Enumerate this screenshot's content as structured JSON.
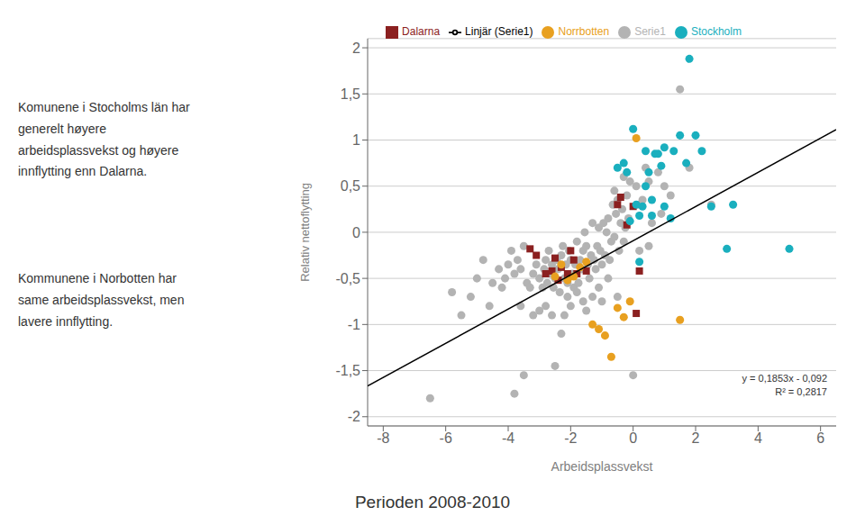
{
  "chart_data": {
    "type": "scatter",
    "title": "Perioden 2008-2010",
    "x_label": "Arbeidsplassvekst",
    "y_label": "Relativ nettoflytting",
    "annotations": [
      "Komunene i Stocholms län har\ngenerelt høyere\narbeidsplassvekst og høyere\ninnflytting enn Dalarna.",
      "Kommunene i Norbotten har\nsame arbeidsplassvekst, men\nlavere innflytting.",
      "y = 0,1853x - 0,092\nR² = 0,2817"
    ],
    "xlim": [
      -8.5,
      6.5
    ],
    "ylim": [
      -2.1,
      2.1
    ],
    "xticks": [
      -8,
      -6,
      -4,
      -2,
      0,
      2,
      4,
      6
    ],
    "yticks": [
      -2,
      {
        "value": -1.5,
        "label": "-1,5"
      },
      -1,
      {
        "value": -0.5,
        "label": "-0,5"
      },
      0,
      {
        "value": 0.5,
        "label": "0,5"
      },
      1,
      {
        "value": 1.5,
        "label": "1,5"
      },
      2
    ],
    "grid": true,
    "legend": "top",
    "series": [
      {
        "name": "Serie1",
        "color": "#b3b3b3",
        "marker": "circle",
        "x": [
          -6.5,
          -5.8,
          -5.5,
          -5.2,
          -4.8,
          -4.5,
          -4.3,
          -4.1,
          -4.0,
          -3.9,
          -3.8,
          -3.7,
          -3.6,
          -3.5,
          -3.4,
          -3.3,
          -3.2,
          -3.1,
          -3.0,
          -2.9,
          -2.85,
          -2.8,
          -2.75,
          -2.7,
          -2.65,
          -2.6,
          -2.55,
          -2.5,
          -2.45,
          -2.4,
          -2.35,
          -2.3,
          -2.25,
          -2.2,
          -2.15,
          -2.1,
          -2.05,
          -2.0,
          -1.95,
          -1.9,
          -1.85,
          -1.8,
          -1.75,
          -1.7,
          -1.65,
          -1.6,
          -1.55,
          -1.5,
          -1.45,
          -1.4,
          -1.35,
          -1.3,
          -1.25,
          -1.2,
          -1.15,
          -1.1,
          -1.05,
          -1.0,
          -0.95,
          -0.9,
          -0.85,
          -0.8,
          -0.75,
          -0.7,
          -0.65,
          -0.6,
          -0.55,
          -0.5,
          -0.45,
          -0.4,
          -0.35,
          -0.3,
          -0.25,
          -0.2,
          -0.15,
          -0.1,
          0.0,
          0.1,
          0.2,
          0.3,
          0.5,
          0.8,
          1.0,
          1.5,
          2.5,
          -3.5,
          -3.8,
          -2.5,
          -2.0,
          -1.5,
          -0.5,
          -1.0,
          0.5,
          -2.8,
          -3.0,
          -3.2,
          -2.2,
          -1.8,
          -1.3,
          -0.8,
          0.2,
          -4.2,
          -4.6,
          -2.6,
          -1.6,
          1.2,
          0.9,
          -0.3,
          0.4,
          -5.0,
          -2.3,
          -3.6,
          -1.1,
          0.6,
          -0.6,
          1.8,
          -2.1
        ],
        "values": [
          -1.8,
          -0.65,
          -0.9,
          -0.7,
          -0.3,
          -0.55,
          -0.4,
          -0.5,
          -0.35,
          -0.2,
          -0.45,
          -0.3,
          -0.4,
          -0.15,
          -0.55,
          -0.6,
          -0.45,
          -0.35,
          -0.5,
          -0.6,
          -0.4,
          -0.3,
          -0.55,
          -0.2,
          -0.45,
          -0.35,
          -0.6,
          -0.5,
          -0.3,
          -0.4,
          -0.65,
          -0.25,
          -0.15,
          -0.5,
          -0.35,
          -0.7,
          -0.2,
          -0.3,
          -0.45,
          -0.6,
          -0.35,
          -0.1,
          -0.55,
          -0.3,
          -0.4,
          -0.2,
          0.0,
          -0.15,
          -0.35,
          -0.5,
          -0.25,
          0.1,
          -0.3,
          -0.4,
          -0.15,
          0.05,
          -0.2,
          -0.35,
          0.1,
          -0.25,
          0.0,
          0.15,
          -0.3,
          -0.1,
          0.3,
          -0.05,
          0.2,
          0.35,
          -0.2,
          0.1,
          0.25,
          -0.1,
          0.05,
          0.4,
          0.15,
          0.55,
          -1.55,
          0.5,
          0.3,
          0.35,
          0.55,
          0.65,
          0.5,
          1.55,
          0.3,
          -1.55,
          -1.75,
          -1.45,
          -0.8,
          -0.85,
          -0.7,
          -0.75,
          -0.15,
          -0.8,
          -0.85,
          -0.9,
          -0.9,
          -0.65,
          -0.7,
          -0.5,
          -0.2,
          -0.6,
          -0.8,
          -0.9,
          -0.75,
          0.4,
          0.2,
          0.6,
          0.7,
          -0.5,
          -1.1,
          -0.8,
          -0.6,
          0.1,
          0.45,
          0.7,
          -0.55
        ]
      },
      {
        "name": "Dalarna",
        "color": "#8B2020",
        "marker": "square",
        "x": [
          -3.3,
          -3.1,
          -2.8,
          -2.6,
          -2.5,
          -2.4,
          -2.3,
          -2.1,
          -2.0,
          -1.9,
          -1.8,
          -1.5,
          -0.5,
          -0.4,
          -0.2,
          0.0,
          0.1,
          0.2
        ],
        "values": [
          -0.18,
          -0.25,
          -0.45,
          -0.42,
          -0.28,
          -0.52,
          -0.38,
          -0.45,
          -0.2,
          -0.3,
          -0.45,
          -0.42,
          0.3,
          0.38,
          0.08,
          0.28,
          -0.88,
          -0.42
        ]
      },
      {
        "name": "Stockholm",
        "color": "#1AAFBE",
        "marker": "circle",
        "x": [
          -0.5,
          -0.3,
          -0.2,
          0.0,
          0.1,
          0.2,
          0.3,
          0.4,
          0.5,
          0.6,
          0.7,
          0.8,
          0.9,
          1.0,
          1.2,
          1.3,
          1.5,
          1.7,
          2.0,
          2.2,
          2.5,
          3.0,
          5.0,
          0.2,
          3.2,
          -0.1,
          0.6,
          1.0,
          0.4,
          1.8
        ],
        "values": [
          0.7,
          0.75,
          0.65,
          1.12,
          0.3,
          0.18,
          0.28,
          0.5,
          0.65,
          0.35,
          0.85,
          0.85,
          0.72,
          0.92,
          0.15,
          0.88,
          1.05,
          0.75,
          1.05,
          0.88,
          0.28,
          -0.18,
          -0.18,
          -0.32,
          0.3,
          0.12,
          0.18,
          0.28,
          0.88,
          1.88
        ]
      },
      {
        "name": "Norrbotten",
        "color": "#E8A020",
        "marker": "circle",
        "x": [
          -2.5,
          -2.3,
          -2.1,
          -1.9,
          -1.7,
          -1.5,
          -1.3,
          -1.1,
          -0.9,
          -0.7,
          -0.5,
          -0.3,
          -0.1,
          0.1,
          1.5
        ],
        "values": [
          -0.48,
          -0.35,
          -0.52,
          -0.48,
          -0.38,
          -0.32,
          -1.0,
          -1.05,
          -1.12,
          -1.35,
          -0.82,
          -0.92,
          -0.75,
          1.02,
          -0.95
        ]
      },
      {
        "name": "Linjär (Serie1)",
        "color": "#000000",
        "type": "line",
        "x": [
          -8.5,
          6.5
        ],
        "values": [
          -1.66705,
          1.11245
        ]
      }
    ]
  }
}
